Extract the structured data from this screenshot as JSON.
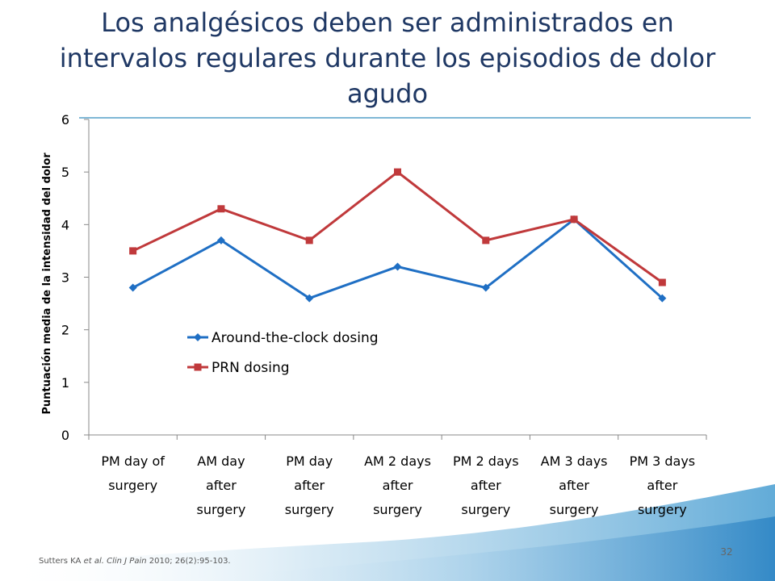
{
  "slide": {
    "title": "Los analgésicos deben ser administrados en intervalos regulares durante los episodios de dolor agudo",
    "citation_pre": "Sutters KA ",
    "citation_italic": "et al. Clin J Pain",
    "citation_post": " 2010; 26(2):95-103.",
    "page_number": "32",
    "accent_color": "#1f3864"
  },
  "chart_data": {
    "type": "line",
    "title": "",
    "xlabel": "",
    "ylabel": "Puntuación media de la intensidad del dolor",
    "ylim": [
      0,
      6
    ],
    "yticks": [
      0,
      1,
      2,
      3,
      4,
      5,
      6
    ],
    "grid": false,
    "legend_position": "center-left",
    "categories": [
      [
        "PM  day of",
        "surgery"
      ],
      [
        "AM day",
        "after",
        "surgery"
      ],
      [
        "PM  day",
        "after",
        "surgery"
      ],
      [
        "AM 2 days",
        "after",
        "surgery"
      ],
      [
        "PM 2 days",
        "after",
        "surgery"
      ],
      [
        "AM 3 days",
        "after",
        "surgery"
      ],
      [
        "PM 3 days",
        "after",
        "surgery"
      ]
    ],
    "series": [
      {
        "name": "Around-the-clock dosing",
        "color": "#1f6fc4",
        "marker": "diamond",
        "values": [
          2.8,
          3.7,
          2.6,
          3.2,
          2.8,
          4.1,
          2.6
        ]
      },
      {
        "name": "PRN dosing",
        "color": "#c0393b",
        "marker": "square",
        "values": [
          3.5,
          4.3,
          3.7,
          5.0,
          3.7,
          4.1,
          2.9
        ]
      }
    ]
  }
}
